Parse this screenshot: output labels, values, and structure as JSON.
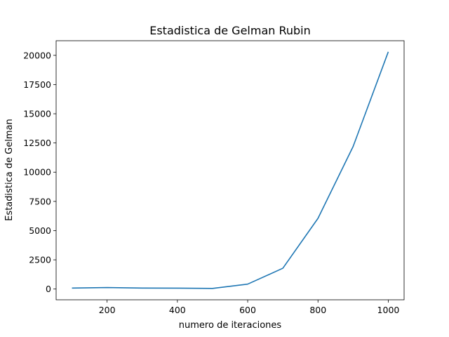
{
  "chart_data": {
    "type": "line",
    "title": "Estadistica de Gelman Rubin",
    "xlabel": "numero de iteraciones",
    "ylabel": "Estadistica de Gelman",
    "xlim": [
      55,
      1045
    ],
    "ylim": [
      -920,
      21250
    ],
    "x_ticks": [
      200,
      400,
      600,
      800,
      1000
    ],
    "x_tick_labels": [
      "200",
      "400",
      "600",
      "800",
      "1000"
    ],
    "y_ticks": [
      0,
      2500,
      5000,
      7500,
      10000,
      12500,
      15000,
      17500,
      20000
    ],
    "y_tick_labels": [
      "0",
      "2500",
      "5000",
      "7500",
      "10000",
      "12500",
      "15000",
      "17500",
      "20000"
    ],
    "grid": false,
    "legend": "none",
    "series": [
      {
        "color": "#1f77b4",
        "x": [
          100,
          200,
          300,
          400,
          500,
          600,
          700,
          800,
          900,
          1000
        ],
        "y": [
          80,
          130,
          80,
          75,
          55,
          420,
          1780,
          6050,
          12200,
          20300
        ]
      }
    ]
  }
}
